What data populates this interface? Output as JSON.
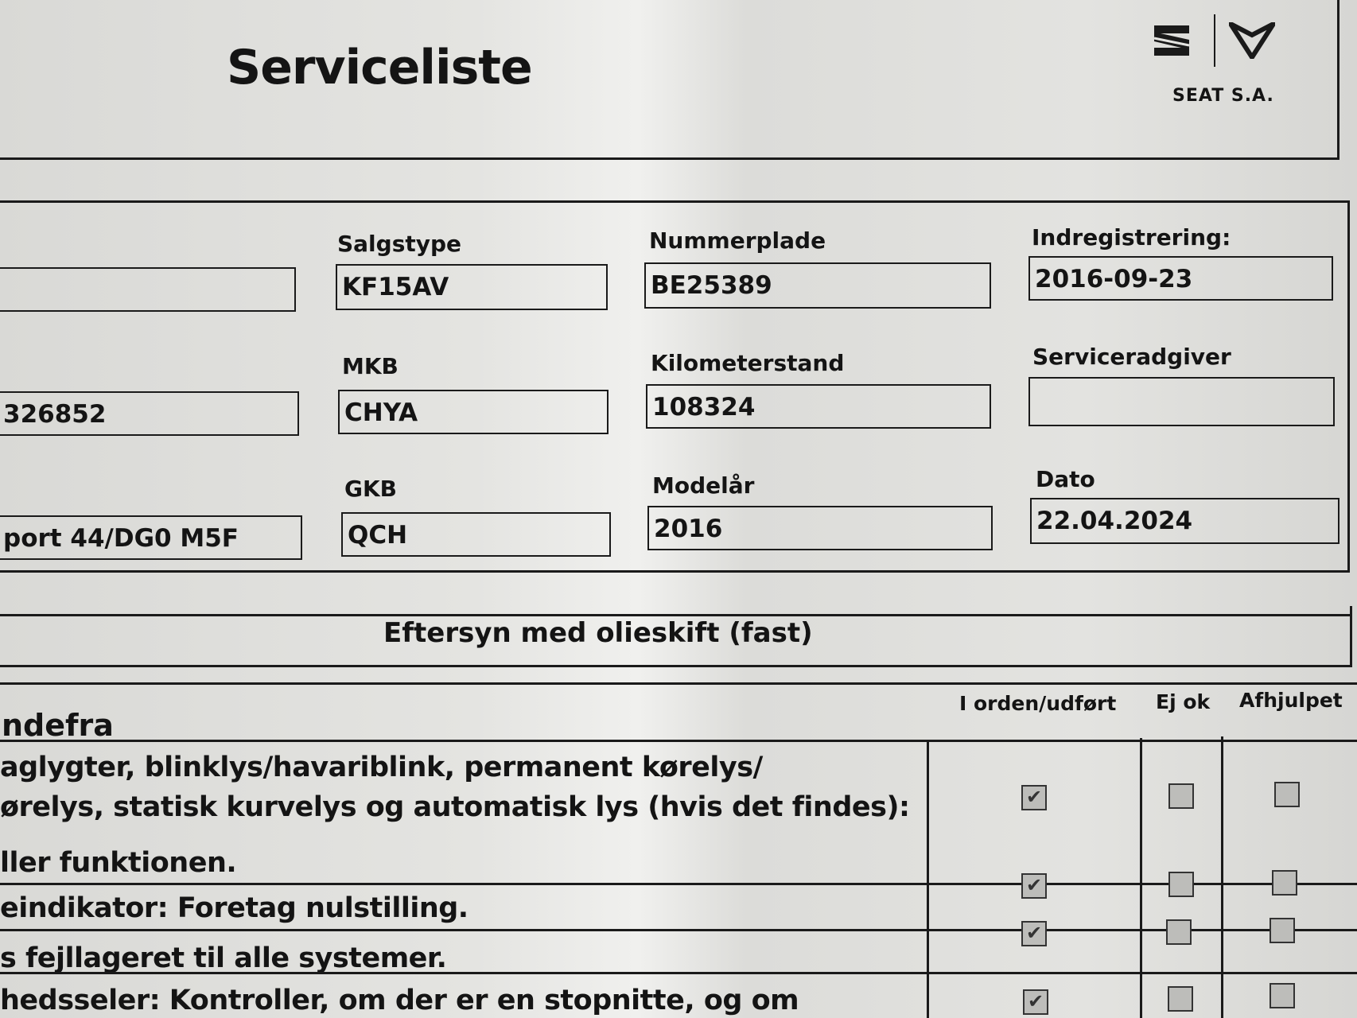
{
  "header": {
    "title": "Serviceliste",
    "brand": "SEAT S.A.",
    "logos": [
      "seat-s-logo",
      "cupra-logo"
    ]
  },
  "vehicle_info": {
    "fields": [
      {
        "label": "",
        "value": ""
      },
      {
        "label": "Salgstype",
        "value": "KF15AV"
      },
      {
        "label": "Nummerplade",
        "value": "BE25389"
      },
      {
        "label": "Indregistrering:",
        "value": "2016-09-23"
      },
      {
        "label": "",
        "value": "326852"
      },
      {
        "label": "MKB",
        "value": "CHYA"
      },
      {
        "label": "Kilometerstand",
        "value": "108324"
      },
      {
        "label": "Serviceradgiver",
        "value": ""
      },
      {
        "label": "",
        "value": "port 44/DG0 M5F"
      },
      {
        "label": "GKB",
        "value": "QCH"
      },
      {
        "label": "Modelår",
        "value": "2016"
      },
      {
        "label": "Dato",
        "value": "22.04.2024"
      }
    ]
  },
  "section": {
    "title": "Eftersyn med olieskift (fast)"
  },
  "table": {
    "group_heading": "ndefra",
    "columns": [
      "I orden/udført",
      "Ej ok",
      "Afhjulpet"
    ],
    "rows": [
      {
        "lines": [
          "aglygter, blinklys/havariblink, permanent kørelys/",
          "ørelys, statisk kurvelys og automatisk lys (hvis det findes):",
          "ller funktionen."
        ],
        "checked": [
          true,
          false,
          false
        ]
      },
      {
        "lines": [
          "eindikator: Foretag nulstilling."
        ],
        "checked": [
          true,
          false,
          false
        ]
      },
      {
        "lines": [
          "s fejllageret til alle systemer."
        ],
        "checked": [
          true,
          false,
          false
        ]
      },
      {
        "lines": [
          "hedsseler: Kontroller, om der er en stopnitte, og om"
        ],
        "checked": [
          true,
          false,
          false
        ]
      }
    ]
  }
}
